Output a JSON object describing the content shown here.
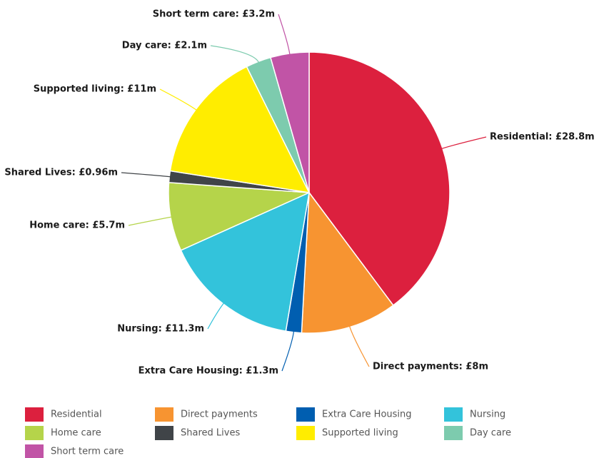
{
  "chart_data": {
    "type": "pie",
    "categories": [
      "Residential",
      "Direct payments",
      "Extra Care Housing",
      "Nursing",
      "Home care",
      "Shared Lives",
      "Supported living",
      "Day care",
      "Short term care"
    ],
    "values": [
      28.8,
      8,
      1.3,
      11.3,
      5.7,
      0.96,
      11,
      2.1,
      3.2
    ],
    "value_labels": [
      "Residential: £28.8m",
      "Direct payments: £8m",
      "Extra Care Housing: £1.3m",
      "Nursing: £11.3m",
      "Home care: £5.7m",
      "Shared Lives: £0.96m",
      "Supported living: £11m",
      "Day care: £2.1m",
      "Short term care: £3.2m"
    ],
    "colors": [
      "#dc203e",
      "#f79431",
      "#005eb0",
      "#33c3db",
      "#b5d44a",
      "#404448",
      "#ffed00",
      "#7dcbae",
      "#c154a6"
    ],
    "legend": "bottom"
  }
}
